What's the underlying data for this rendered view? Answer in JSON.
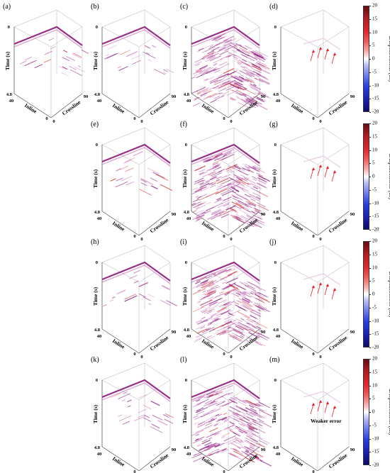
{
  "figure": {
    "panels": [
      {
        "label": "(a)",
        "type": "section",
        "density": "low"
      },
      {
        "label": "(b)",
        "type": "section",
        "density": "low"
      },
      {
        "label": "(c)",
        "type": "section",
        "density": "high"
      },
      {
        "label": "(d)",
        "type": "error",
        "annotation": ""
      },
      {
        "label": "(e)",
        "type": "section",
        "density": "low"
      },
      {
        "label": "(f)",
        "type": "section",
        "density": "high"
      },
      {
        "label": "(g)",
        "type": "error",
        "annotation": ""
      },
      {
        "label": "(h)",
        "type": "section",
        "density": "low"
      },
      {
        "label": "(i)",
        "type": "section",
        "density": "high"
      },
      {
        "label": "(j)",
        "type": "error",
        "annotation": ""
      },
      {
        "label": "(k)",
        "type": "section",
        "density": "low"
      },
      {
        "label": "(l)",
        "type": "section",
        "density": "high"
      },
      {
        "label": "(m)",
        "type": "error",
        "annotation": "Weaker error"
      }
    ],
    "axes": {
      "time_label": "Time (s)",
      "inline_label": "Inline",
      "crossline_label": "Crossline",
      "time_top": "0",
      "time_bottom": "4.8",
      "inline_max": "40",
      "inline_min": "0",
      "crossline_min": "0",
      "crossline_max": "90"
    },
    "colorbar": {
      "label": "Displacement (m)",
      "ticks": [
        "20",
        "15",
        "10",
        "5",
        "0",
        "-5",
        "-10",
        "-15",
        "-20"
      ],
      "max": 20,
      "min": -20
    },
    "colors": {
      "section": "#8b1a7a",
      "section_light": "#c86bb8",
      "error_arrow": "#e8202a",
      "negative": "#2a3fe4",
      "frame": "#b0b0b0"
    }
  }
}
